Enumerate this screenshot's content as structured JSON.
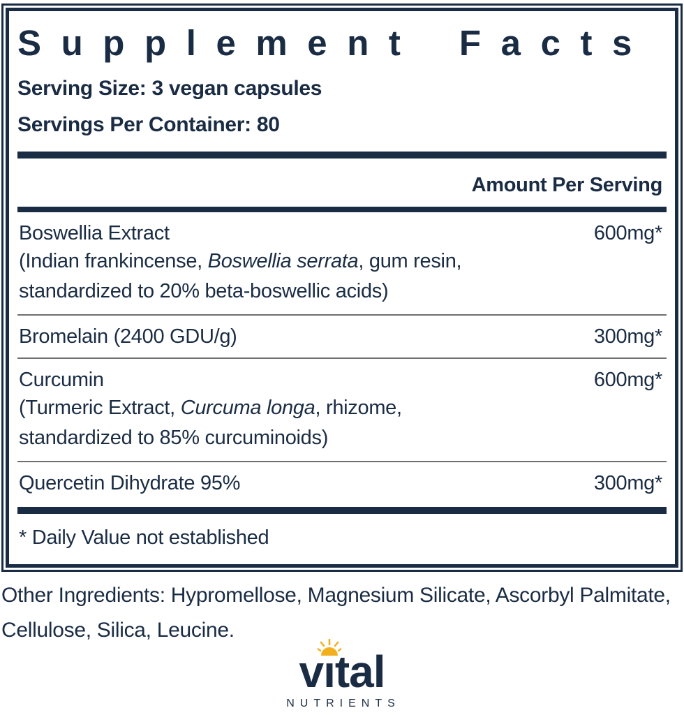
{
  "colors": {
    "navy": "#1a2c44",
    "rule_gray": "#6e6e6e",
    "sun_gold": "#f2b01e"
  },
  "panel": {
    "title": "Supplement Facts",
    "serving_size": "Serving Size: 3 vegan capsules",
    "servings_per_container": "Servings Per Container: 80",
    "amount_header": "Amount Per Serving",
    "rows": [
      {
        "name": "Boswellia Extract",
        "amount": "600mg*",
        "desc_lines": [
          [
            {
              "t": "(Indian frankincense, "
            },
            {
              "t": "Boswellia serrata",
              "i": true
            },
            {
              "t": ", gum resin,"
            }
          ],
          [
            {
              "t": "standardized to 20% beta-boswellic acids)"
            }
          ]
        ]
      },
      {
        "name": "Bromelain (2400 GDU/g)",
        "amount": "300mg*",
        "desc_lines": []
      },
      {
        "name": "Curcumin",
        "amount": "600mg*",
        "desc_lines": [
          [
            {
              "t": "(Turmeric Extract, "
            },
            {
              "t": "Curcuma longa",
              "i": true
            },
            {
              "t": ", rhizome,"
            }
          ],
          [
            {
              "t": "standardized to 85% curcuminoids)"
            }
          ]
        ]
      },
      {
        "name": "Quercetin Dihydrate 95%",
        "amount": "300mg*",
        "desc_lines": []
      }
    ],
    "footnote": "* Daily Value not established"
  },
  "other_ingredients": {
    "lines": [
      "Other Ingredients: Hypromellose, Magnesium Silicate, Ascorbyl Palmitate,",
      "Cellulose, Silica, Leucine."
    ]
  },
  "logo": {
    "word": "vıtal",
    "sub": "NUTRIENTS"
  }
}
